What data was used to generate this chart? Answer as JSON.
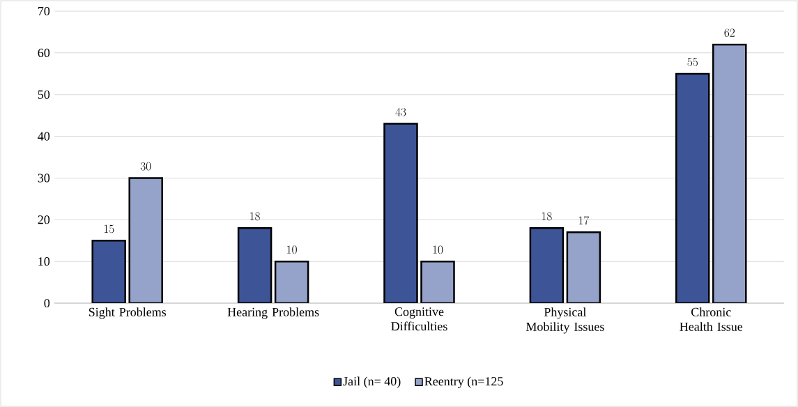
{
  "chart_data": {
    "type": "bar",
    "categories": [
      "Sight Problems",
      "Hearing Problems",
      "Cognitive Difficulties",
      "Physical Mobility Issues",
      "Chronic Health Issue"
    ],
    "series": [
      {
        "name": "Jail (n= 40)",
        "color": "#3d5597",
        "values": [
          15,
          18,
          43,
          18,
          55
        ]
      },
      {
        "name": "Reentry (n=125",
        "color": "#95a2c9",
        "values": [
          30,
          10,
          10,
          17,
          62
        ]
      }
    ],
    "ylim": [
      0,
      70
    ],
    "yticks": [
      0,
      10,
      20,
      30,
      40,
      50,
      60,
      70
    ],
    "grid": "y",
    "legend": "bottom",
    "data_labels": true
  }
}
